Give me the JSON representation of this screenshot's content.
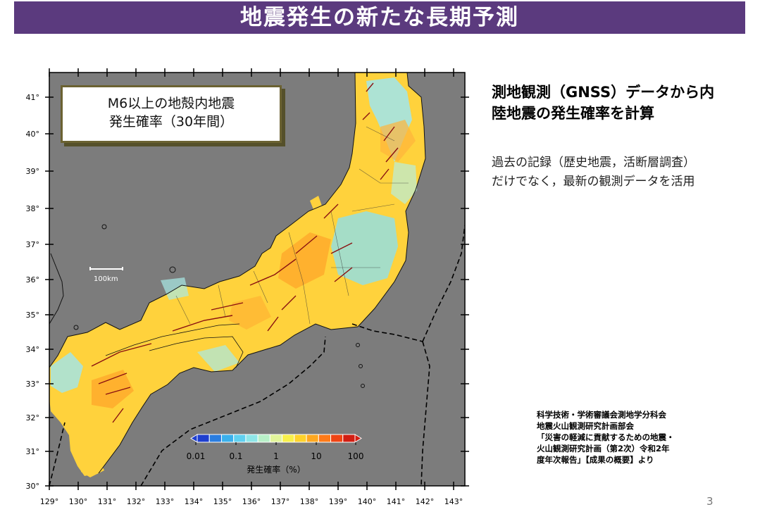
{
  "title": "地震発生の新たな長期予測",
  "map": {
    "info_box": {
      "line1": "M6以上の地殻内地震",
      "line2": "発生確率（30年間）"
    },
    "scale_bar_label": "100km",
    "lat_labels": [
      "30°",
      "31°",
      "32°",
      "33°",
      "34°",
      "35°",
      "36°",
      "37°",
      "38°",
      "39°",
      "40°",
      "41°"
    ],
    "lon_labels": [
      "129°",
      "130°",
      "131°",
      "132°",
      "133°",
      "134°",
      "135°",
      "136°",
      "137°",
      "138°",
      "139°",
      "140°",
      "141°",
      "142°",
      "143°"
    ],
    "colorbar": {
      "tick_labels": [
        "0.01",
        "0.1",
        "1",
        "10",
        "100"
      ],
      "label": "発生確率（%）",
      "colors": [
        "#1f3fcf",
        "#2a7de0",
        "#3ab0ec",
        "#5fd0f0",
        "#8ee6e8",
        "#b8f0c8",
        "#e2f59a",
        "#f8f04a",
        "#ffd22a",
        "#ffa820",
        "#ff7a18",
        "#f04414",
        "#d21e12"
      ]
    },
    "colors": {
      "sea": "#7c7c7c",
      "ocean_trench": "#000000",
      "faults": "#8a1010"
    }
  },
  "right_panel": {
    "heading_lines": [
      "測地観測（GNSS）データから内",
      "陸地震の発生確率を計算"
    ],
    "desc_lines": [
      "過去の記録（歴史地震，活断層調査）",
      "だけでなく，最新の観測データを活用"
    ],
    "source_lines": [
      "科学技術・学術審議会測地学分科会",
      "地震火山観測研究計画部会",
      "「災害の軽減に貢献するための地震・",
      "火山観測研究計画（第2次）令和2年",
      "度年次報告」【成果の概要】より"
    ]
  },
  "page_number": "3"
}
